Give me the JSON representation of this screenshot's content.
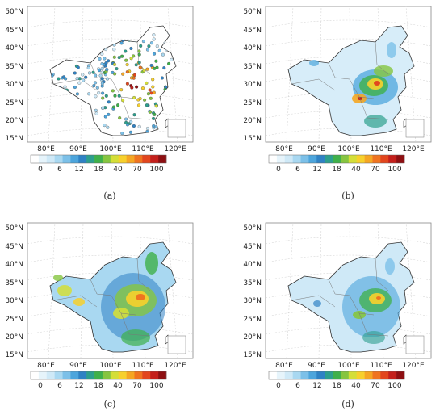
{
  "panels": [
    {
      "id": "a",
      "label": "(a)",
      "type": "stations"
    },
    {
      "id": "b",
      "label": "(b)",
      "type": "field"
    },
    {
      "id": "c",
      "label": "(c)",
      "type": "field"
    },
    {
      "id": "d",
      "label": "(d)",
      "type": "field"
    }
  ],
  "lat_ticks": [
    "50°N",
    "45°N",
    "40°N",
    "35°N",
    "30°N",
    "25°N",
    "20°N",
    "15°N"
  ],
  "lon_ticks": [
    "80°E",
    "90°E",
    "100°E",
    "110°E",
    "120°E"
  ],
  "colorbar": {
    "tick_labels": [
      "0",
      "6",
      "12",
      "18",
      "40",
      "70",
      "100"
    ],
    "colors": [
      "#ffffff",
      "#e6f4fb",
      "#cfe9f7",
      "#a9d8f1",
      "#7cc0e8",
      "#4da5dc",
      "#2f82c4",
      "#2d9f8d",
      "#3fb04a",
      "#86c540",
      "#d4de38",
      "#f7d02c",
      "#f5a623",
      "#ef7420",
      "#e2461e",
      "#c4201c",
      "#8e0f12"
    ]
  }
}
